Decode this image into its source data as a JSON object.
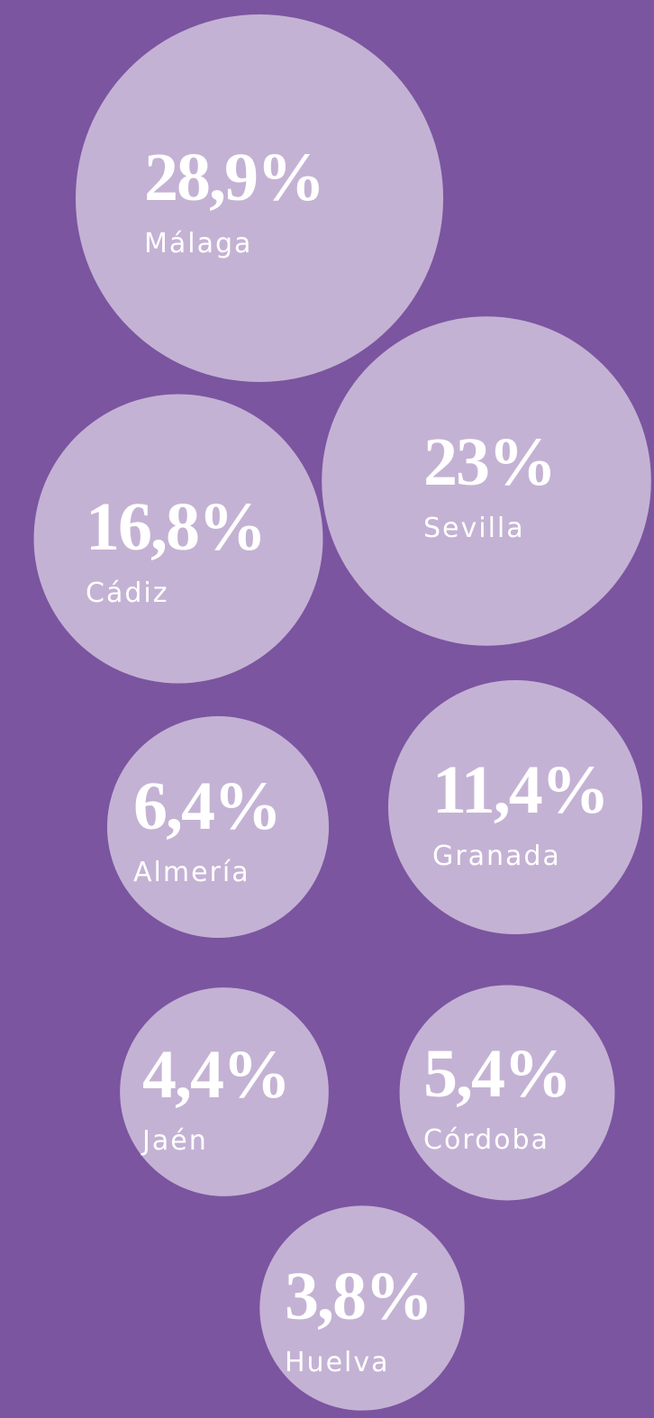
{
  "chart_data": {
    "type": "bubble",
    "categories": [
      "Málaga",
      "Sevilla",
      "Cádiz",
      "Almería",
      "Granada",
      "Jaén",
      "Córdoba",
      "Huelva"
    ],
    "values": [
      28.9,
      23,
      16.8,
      6.4,
      11.4,
      4.4,
      5.4,
      3.8
    ],
    "value_labels": [
      "28,9%",
      "23%",
      "16,8%",
      "6,4%",
      "11,4%",
      "4,4%",
      "5,4%",
      "3,8%"
    ],
    "color": "#c4b2d4"
  }
}
